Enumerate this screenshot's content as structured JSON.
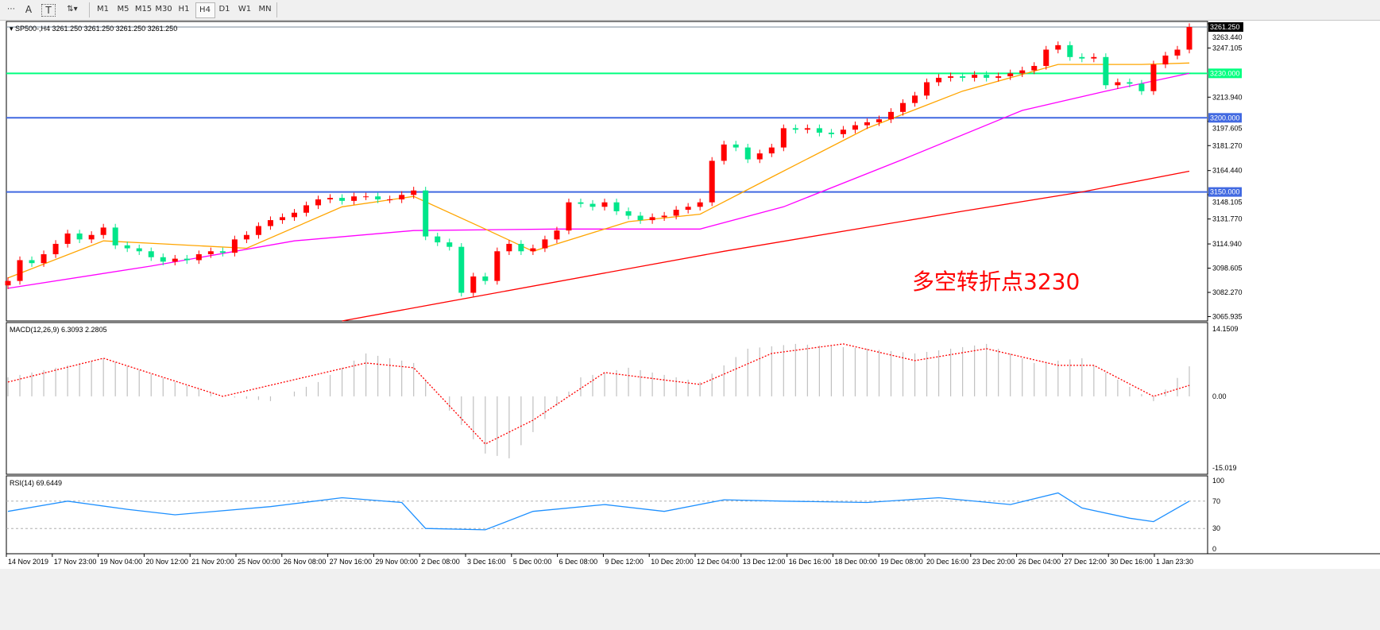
{
  "toolbar": {
    "tools": [
      {
        "name": "periods-separator-tool",
        "glyph": "⋯"
      },
      {
        "name": "text-tool",
        "glyph": "A"
      },
      {
        "name": "text-label-tool",
        "glyph": "T"
      },
      {
        "name": "arrows-tool",
        "glyph": "⇅▾"
      }
    ],
    "timeframes": [
      "M1",
      "M5",
      "M15",
      "M30",
      "H1",
      "H4",
      "D1",
      "W1",
      "MN"
    ],
    "active_timeframe": "H4"
  },
  "chart_data": {
    "type": "candlestick",
    "symbol_header": "SP500-,H4  3261.250 3261.250 3261.250 3261.250",
    "annotation": "多空转折点3230",
    "colors": {
      "up": "#ff0000",
      "down": "#00e68a",
      "ma_fast": "#ffa500",
      "ma_mid": "#ff00ff",
      "ma_slow": "#ff0000",
      "level_green": "#00ff7f",
      "level_blue": "#4169e1",
      "macd_hist": "#c0c0c0",
      "macd_signal": "#ff0000",
      "rsi": "#1e90ff"
    },
    "ylim": [
      3063,
      3265
    ],
    "y_ticks": [
      "3263.440",
      "3247.105",
      "3213.940",
      "3197.605",
      "3181.270",
      "3164.440",
      "3148.105",
      "3131.770",
      "3114.940",
      "3098.605",
      "3082.270",
      "3065.935"
    ],
    "current_price": {
      "value": 3261.25,
      "label": "3261.250"
    },
    "levels": [
      {
        "value": 3230,
        "label": "3230.000",
        "color": "#00ff7f"
      },
      {
        "value": 3200,
        "label": "3200.000",
        "color": "#4169e1"
      },
      {
        "value": 3150,
        "label": "3150.000",
        "color": "#4169e1"
      }
    ],
    "closes": [
      3090,
      3104,
      3102,
      3108,
      3115,
      3122,
      3118,
      3121,
      3126,
      3114,
      3112,
      3110,
      3106,
      3103,
      3105,
      3104,
      3108,
      3110,
      3109,
      3118,
      3121,
      3127,
      3131,
      3133,
      3136,
      3141,
      3145,
      3146,
      3144,
      3147,
      3147,
      3145,
      3145,
      3148,
      3151,
      3120,
      3116,
      3113,
      3082,
      3093,
      3090,
      3110,
      3115,
      3110,
      3112,
      3118,
      3124,
      3143,
      3142,
      3140,
      3143,
      3137,
      3134,
      3131,
      3133,
      3134,
      3138,
      3140,
      3143,
      3171,
      3182,
      3180,
      3172,
      3176,
      3180,
      3193,
      3192,
      3193,
      3190,
      3189,
      3192,
      3195,
      3197,
      3199,
      3204,
      3210,
      3215,
      3224,
      3227,
      3228,
      3227,
      3229,
      3227,
      3228,
      3230,
      3232,
      3235,
      3246,
      3249,
      3241,
      3240,
      3241,
      3222,
      3224,
      3223,
      3218,
      3236,
      3242,
      3246,
      3261.25
    ],
    "moving_averages": {
      "fast": [
        [
          0,
          3092
        ],
        [
          8,
          3117
        ],
        [
          13,
          3115
        ],
        [
          20,
          3112
        ],
        [
          28,
          3140
        ],
        [
          34,
          3147
        ],
        [
          40,
          3125
        ],
        [
          44,
          3110
        ],
        [
          52,
          3130
        ],
        [
          58,
          3135
        ],
        [
          64,
          3160
        ],
        [
          72,
          3193
        ],
        [
          80,
          3218
        ],
        [
          88,
          3236
        ],
        [
          95,
          3236
        ],
        [
          99,
          3237
        ]
      ],
      "mid": [
        [
          0,
          3085
        ],
        [
          12,
          3100
        ],
        [
          24,
          3117
        ],
        [
          34,
          3124
        ],
        [
          46,
          3125
        ],
        [
          58,
          3125
        ],
        [
          65,
          3140
        ],
        [
          75,
          3172
        ],
        [
          85,
          3205
        ],
        [
          92,
          3218
        ],
        [
          99,
          3230
        ]
      ],
      "slow": [
        [
          28,
          3063
        ],
        [
          60,
          3110
        ],
        [
          80,
          3137
        ],
        [
          90,
          3150
        ],
        [
          99,
          3164
        ]
      ]
    },
    "macd": {
      "label": "MACD(12,26,9) 6.3093 2.2805",
      "ylim": [
        -15.019,
        14.1509
      ],
      "ticks": [
        "14.1509",
        "0.00",
        "-15.019"
      ],
      "histogram": [
        [
          0,
          4
        ],
        [
          8,
          8
        ],
        [
          14,
          3
        ],
        [
          18,
          0
        ],
        [
          22,
          -1
        ],
        [
          26,
          3
        ],
        [
          30,
          9
        ],
        [
          34,
          7
        ],
        [
          36,
          0
        ],
        [
          40,
          -12
        ],
        [
          42,
          -13
        ],
        [
          46,
          -2
        ],
        [
          48,
          4
        ],
        [
          52,
          6
        ],
        [
          58,
          3
        ],
        [
          62,
          10
        ],
        [
          66,
          11
        ],
        [
          72,
          10
        ],
        [
          76,
          9
        ],
        [
          82,
          11
        ],
        [
          86,
          7
        ],
        [
          90,
          8
        ],
        [
          94,
          2
        ],
        [
          96,
          -1
        ],
        [
          99,
          6.3
        ]
      ],
      "signal": [
        [
          0,
          3
        ],
        [
          8,
          8
        ],
        [
          18,
          0
        ],
        [
          30,
          7
        ],
        [
          34,
          6
        ],
        [
          40,
          -10
        ],
        [
          44,
          -5
        ],
        [
          50,
          5
        ],
        [
          58,
          2.5
        ],
        [
          64,
          9
        ],
        [
          70,
          11
        ],
        [
          76,
          7.5
        ],
        [
          82,
          10
        ],
        [
          88,
          6.5
        ],
        [
          91,
          6.5
        ],
        [
          96,
          0
        ],
        [
          99,
          2.3
        ]
      ]
    },
    "rsi": {
      "label": "RSI(14) 69.6449",
      "ylim": [
        0,
        100
      ],
      "ticks": [
        "100",
        "70",
        "30",
        "0"
      ],
      "levels": [
        70,
        30
      ],
      "values": [
        [
          0,
          55
        ],
        [
          5,
          70
        ],
        [
          10,
          58
        ],
        [
          14,
          50
        ],
        [
          22,
          62
        ],
        [
          28,
          75
        ],
        [
          33,
          68
        ],
        [
          35,
          30
        ],
        [
          40,
          28
        ],
        [
          44,
          55
        ],
        [
          50,
          65
        ],
        [
          55,
          55
        ],
        [
          60,
          72
        ],
        [
          65,
          70
        ],
        [
          72,
          68
        ],
        [
          78,
          75
        ],
        [
          84,
          65
        ],
        [
          88,
          82
        ],
        [
          90,
          60
        ],
        [
          94,
          45
        ],
        [
          96,
          40
        ],
        [
          99,
          70
        ]
      ]
    },
    "x_ticks": [
      "14 Nov 2019",
      "17 Nov 23:00",
      "19 Nov 04:00",
      "20 Nov 12:00",
      "21 Nov 20:00",
      "25 Nov 00:00",
      "26 Nov 08:00",
      "27 Nov 16:00",
      "29 Nov 00:00",
      "2 Dec 08:00",
      "3 Dec 16:00",
      "5 Dec 00:00",
      "6 Dec 08:00",
      "9 Dec 12:00",
      "10 Dec 20:00",
      "12 Dec 04:00",
      "13 Dec 12:00",
      "16 Dec 16:00",
      "18 Dec 00:00",
      "19 Dec 08:00",
      "20 Dec 16:00",
      "23 Dec 20:00",
      "26 Dec 04:00",
      "27 Dec 12:00",
      "30 Dec 16:00",
      "1 Jan 23:30"
    ]
  }
}
